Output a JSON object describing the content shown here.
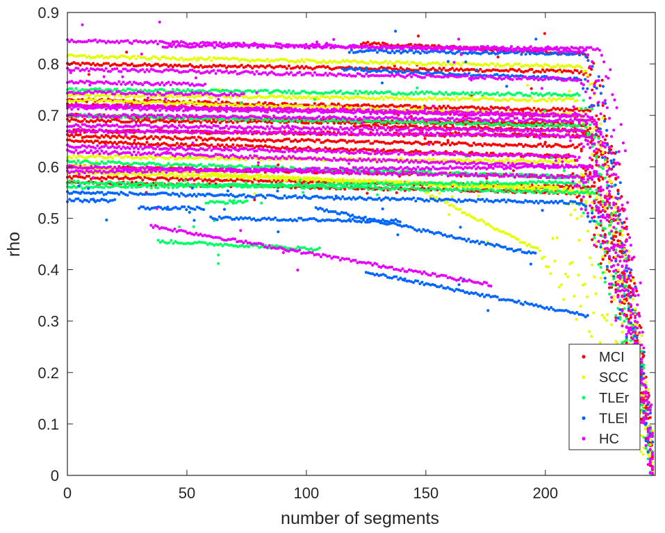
{
  "chart_data": {
    "type": "scatter",
    "title": "",
    "xlabel": "number of segments",
    "ylabel": "rho",
    "xlim": [
      0,
      246
    ],
    "ylim": [
      0,
      0.9
    ],
    "xticks": [
      0,
      50,
      100,
      150,
      200
    ],
    "yticks": [
      0,
      0.1,
      0.2,
      0.3,
      0.4,
      0.5,
      0.6,
      0.7,
      0.8,
      0.9
    ],
    "grid": false,
    "legend_position": "bottom-right",
    "legend": [
      {
        "label": "MCI",
        "color": "#ff0000"
      },
      {
        "label": "SCC",
        "color": "#e5ff00"
      },
      {
        "label": "TLEr",
        "color": "#00ff66"
      },
      {
        "label": "TLEl",
        "color": "#0066ff"
      },
      {
        "label": "HC",
        "color": "#e600ff"
      }
    ],
    "series": [
      {
        "name": "MCI",
        "color": "#ff0000",
        "curves": [
          {
            "start": 0.8,
            "end": 0.785,
            "knee": 215
          },
          {
            "start": 0.73,
            "end": 0.71,
            "knee": 218
          },
          {
            "start": 0.72,
            "end": 0.7,
            "knee": 214
          },
          {
            "start": 0.7,
            "end": 0.68,
            "knee": 216
          },
          {
            "start": 0.69,
            "end": 0.685,
            "knee": 210
          },
          {
            "start": 0.67,
            "end": 0.66,
            "knee": 222
          },
          {
            "start": 0.66,
            "end": 0.64,
            "knee": 212
          },
          {
            "start": 0.65,
            "end": 0.62,
            "knee": 208
          },
          {
            "start": 0.6,
            "end": 0.58,
            "knee": 214
          },
          {
            "start": 0.58,
            "end": 0.56,
            "knee": 220
          },
          {
            "start": 0.57,
            "end": 0.55,
            "knee": 212
          },
          {
            "start": 0.84,
            "end": 0.82,
            "knee": 216,
            "from": 123
          },
          {
            "start": 0.68,
            "end": 0.67,
            "knee": 216,
            "from": 120
          }
        ]
      },
      {
        "name": "SCC",
        "color": "#e5ff00",
        "curves": [
          {
            "start": 0.815,
            "end": 0.795,
            "knee": 214
          },
          {
            "start": 0.74,
            "end": 0.73,
            "knee": 212
          },
          {
            "start": 0.73,
            "end": 0.7,
            "knee": 214
          },
          {
            "start": 0.62,
            "end": 0.61,
            "knee": 210
          },
          {
            "start": 0.6,
            "end": 0.55,
            "knee": 220
          },
          {
            "start": 0.59,
            "end": 0.56,
            "knee": 205
          },
          {
            "start": 0.55,
            "end": 0.44,
            "knee": 196,
            "from": 150
          }
        ]
      },
      {
        "name": "TLEr",
        "color": "#00ff66",
        "curves": [
          {
            "start": 0.75,
            "end": 0.74,
            "knee": 212
          },
          {
            "start": 0.7,
            "end": 0.68,
            "knee": 214
          },
          {
            "start": 0.61,
            "end": 0.58,
            "knee": 214
          },
          {
            "start": 0.57,
            "end": 0.55,
            "knee": 218
          },
          {
            "start": 0.56,
            "end": 0.57,
            "knee": 210
          },
          {
            "start": 0.455,
            "end": 0.44,
            "knee": 105,
            "from": 38,
            "stop": 106
          },
          {
            "start": 0.53,
            "end": 0.54,
            "knee": 120,
            "from": 58,
            "stop": 76
          }
        ]
      },
      {
        "name": "TLEl",
        "color": "#0066ff",
        "curves": [
          {
            "start": 0.825,
            "end": 0.82,
            "knee": 216,
            "from": 118
          },
          {
            "start": 0.79,
            "end": 0.77,
            "knee": 214,
            "from": 115
          },
          {
            "start": 0.535,
            "end": 0.53,
            "knee": 200,
            "from": 0,
            "stop": 20
          },
          {
            "start": 0.52,
            "end": 0.515,
            "knee": 200,
            "from": 30,
            "stop": 57
          },
          {
            "start": 0.5,
            "end": 0.49,
            "knee": 200,
            "from": 60,
            "stop": 140
          },
          {
            "start": 0.52,
            "end": 0.43,
            "knee": 196,
            "from": 104,
            "stop": 196
          },
          {
            "start": 0.395,
            "end": 0.31,
            "knee": 218,
            "from": 125,
            "stop": 218
          },
          {
            "start": 0.55,
            "end": 0.53,
            "knee": 215
          }
        ]
      },
      {
        "name": "HC",
        "color": "#e600ff",
        "curves": [
          {
            "start": 0.845,
            "end": 0.825,
            "knee": 216
          },
          {
            "start": 0.835,
            "end": 0.83,
            "knee": 222,
            "from": 40
          },
          {
            "start": 0.79,
            "end": 0.77,
            "knee": 214
          },
          {
            "start": 0.765,
            "end": 0.76,
            "knee": 60,
            "from": 0,
            "stop": 58
          },
          {
            "start": 0.745,
            "end": 0.74,
            "knee": 75,
            "from": 0,
            "stop": 74
          },
          {
            "start": 0.72,
            "end": 0.7,
            "knee": 218
          },
          {
            "start": 0.715,
            "end": 0.7,
            "knee": 210
          },
          {
            "start": 0.7,
            "end": 0.69,
            "knee": 220
          },
          {
            "start": 0.68,
            "end": 0.67,
            "knee": 214
          },
          {
            "start": 0.67,
            "end": 0.66,
            "knee": 216
          },
          {
            "start": 0.64,
            "end": 0.62,
            "knee": 212
          },
          {
            "start": 0.63,
            "end": 0.6,
            "knee": 218
          },
          {
            "start": 0.6,
            "end": 0.58,
            "knee": 214
          },
          {
            "start": 0.59,
            "end": 0.6,
            "knee": 208
          },
          {
            "start": 0.485,
            "end": 0.37,
            "knee": 178,
            "from": 35,
            "stop": 178
          }
        ]
      }
    ]
  }
}
